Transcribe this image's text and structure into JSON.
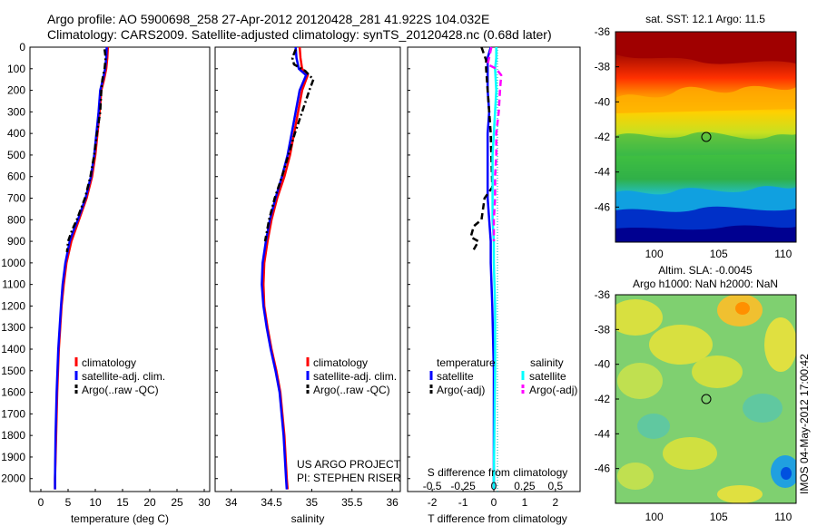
{
  "header": {
    "line1": "Argo profile: AO 5900698_258 27-Apr-2012 20120428_281 41.922S 104.032E",
    "line2": "Climatology: CARS2009. Satellite-adjusted climatology: synTS_20120428.nc (0.68d later)"
  },
  "depth_ticks": [
    "0",
    "100",
    "200",
    "300",
    "400",
    "500",
    "600",
    "700",
    "800",
    "900",
    "1000",
    "1100",
    "1200",
    "1300",
    "1400",
    "1500",
    "1600",
    "1700",
    "1800",
    "1900",
    "2000"
  ],
  "panels": {
    "temperature": {
      "xlabel": "temperature (deg C)",
      "xticks": [
        "0",
        "5",
        "10",
        "15",
        "20",
        "25",
        "30"
      ],
      "legend": [
        "climatology",
        "satellite-adj. clim.",
        "Argo(..raw -QC)"
      ]
    },
    "salinity": {
      "xlabel": "salinity",
      "xticks": [
        "34",
        "34.5",
        "35",
        "35.5",
        "36"
      ],
      "legend": [
        "climatology",
        "satellite-adj. clim.",
        "Argo(..raw -QC)"
      ],
      "credit1": "US ARGO PROJECT",
      "credit2": "PI: STEPHEN RISER"
    },
    "difference": {
      "xlabel": "T difference from climatology",
      "top_label": "S difference from climatology",
      "xticks_bottom": [
        "-2",
        "-1",
        "0",
        "1",
        "2"
      ],
      "xticks_top": [
        "-0.5",
        "-0.25",
        "0",
        "0.25",
        "0.5"
      ],
      "legend_temp_title": "temperature",
      "legend_sal_title": "salinity",
      "legend_temp": [
        "satellite",
        "Argo(-adj)"
      ],
      "legend_sal": [
        "satellite",
        "Argo(-adj)"
      ]
    }
  },
  "maps": {
    "sst": {
      "title": "sat. SST: 12.1 Argo: 11.5",
      "yticks": [
        "-36",
        "-38",
        "-40",
        "-42",
        "-44",
        "-46"
      ],
      "xticks": [
        "100",
        "105",
        "110"
      ]
    },
    "sla": {
      "title1": "Altim. SLA: -0.0045",
      "title2": "Argo h1000: NaN h2000: NaN",
      "yticks": [
        "-36",
        "-38",
        "-40",
        "-42",
        "-44",
        "-46"
      ],
      "xticks": [
        "100",
        "105",
        "110"
      ]
    },
    "stamp": "IMOS 04-May-2012 17:00:42"
  },
  "colors": {
    "climatology": "#ff0000",
    "satellite": "#0000ff",
    "argo": "#000000",
    "salinity_satellite": "#00ffff",
    "salinity_argo": "#ff00ff"
  },
  "chart_data": [
    {
      "type": "line",
      "xlabel": "temperature (deg C)",
      "ylabel": "",
      "xlim": [
        -2,
        31
      ],
      "ylim": [
        2060,
        0
      ],
      "y_depth": [
        0,
        50,
        100,
        150,
        200,
        300,
        400,
        500,
        600,
        700,
        800,
        850,
        900,
        1000,
        1100,
        1200,
        1400,
        1600,
        1800,
        2000,
        2050
      ],
      "series": [
        {
          "name": "climatology",
          "color": "#ff0000",
          "dash": "solid",
          "x": [
            12.3,
            12.2,
            12.0,
            11.6,
            11.1,
            10.8,
            10.4,
            10.0,
            9.4,
            8.4,
            7.0,
            6.3,
            5.6,
            4.7,
            4.2,
            3.8,
            3.3,
            3.0,
            2.8,
            2.6,
            2.6
          ]
        },
        {
          "name": "satellite-adj. clim.",
          "color": "#0000ff",
          "dash": "solid",
          "x": [
            12.1,
            12.0,
            11.8,
            11.4,
            10.9,
            10.6,
            10.2,
            9.8,
            9.2,
            8.2,
            6.8,
            6.0,
            5.3,
            4.5,
            4.0,
            3.7,
            3.2,
            2.9,
            2.7,
            2.6,
            2.6
          ]
        },
        {
          "name": "Argo(..raw -QC)",
          "color": "#000000",
          "dash": "dashdot",
          "y_depth": [
            10,
            50,
            100,
            150,
            200,
            300,
            400,
            500,
            600,
            700,
            800,
            850,
            900,
            950
          ],
          "x": [
            11.7,
            11.9,
            11.7,
            11.3,
            11.1,
            10.9,
            10.3,
            9.8,
            9.1,
            8.1,
            6.6,
            5.7,
            5.0,
            4.8
          ]
        }
      ]
    },
    {
      "type": "line",
      "xlabel": "salinity",
      "ylabel": "",
      "xlim": [
        33.8,
        36.1
      ],
      "ylim": [
        2060,
        0
      ],
      "y_depth": [
        0,
        50,
        100,
        130,
        200,
        300,
        400,
        500,
        600,
        700,
        800,
        900,
        1000,
        1100,
        1200,
        1300,
        1400,
        1500,
        1600,
        1800,
        2000,
        2050
      ],
      "series": [
        {
          "name": "climatology",
          "color": "#ff0000",
          "dash": "solid",
          "x": [
            34.85,
            34.86,
            34.88,
            34.95,
            34.88,
            34.83,
            34.78,
            34.73,
            34.66,
            34.57,
            34.5,
            34.45,
            34.41,
            34.4,
            34.41,
            34.45,
            34.5,
            34.56,
            34.61,
            34.66,
            34.69,
            34.7
          ]
        },
        {
          "name": "satellite-adj. clim.",
          "color": "#0000ff",
          "dash": "solid",
          "x": [
            34.8,
            34.81,
            34.84,
            34.93,
            34.85,
            34.8,
            34.75,
            34.7,
            34.63,
            34.55,
            34.48,
            34.43,
            34.39,
            34.38,
            34.4,
            34.44,
            34.49,
            34.55,
            34.6,
            34.65,
            34.68,
            34.69
          ]
        },
        {
          "name": "Argo(..raw -QC)",
          "color": "#000000",
          "dash": "dashdot",
          "y_depth": [
            10,
            50,
            80,
            110,
            150,
            200,
            300,
            400,
            500,
            600,
            700,
            800,
            900
          ],
          "x": [
            34.8,
            34.76,
            34.78,
            34.92,
            35.02,
            34.97,
            34.88,
            34.79,
            34.71,
            34.63,
            34.54,
            34.47,
            34.42
          ]
        }
      ]
    },
    {
      "type": "line",
      "xlabel": "T difference from climatology",
      "ylabel": "",
      "xlim": [
        -2.8,
        2.8
      ],
      "ylim": [
        2060,
        0
      ],
      "top_axis": {
        "label": "S difference from climatology",
        "xlim": [
          -0.7,
          0.7
        ]
      },
      "series": [
        {
          "name": "temperature satellite",
          "color": "#0000ff",
          "dash": "solid",
          "y_depth": [
            0,
            50,
            100,
            200,
            300,
            400,
            500,
            600,
            700,
            800,
            900,
            1000,
            1200,
            1500,
            2000,
            2050
          ],
          "x": [
            -0.1,
            -0.2,
            -0.2,
            -0.2,
            -0.15,
            -0.2,
            -0.2,
            -0.2,
            -0.2,
            -0.15,
            -0.1,
            -0.1,
            -0.05,
            0.0,
            0.0,
            0.0
          ]
        },
        {
          "name": "temperature Argo(-adj)",
          "color": "#000000",
          "dash": "dashed",
          "y_depth": [
            0,
            60,
            100,
            400,
            650,
            700,
            800,
            830,
            880,
            900,
            950
          ],
          "x": [
            -0.4,
            -0.25,
            -0.25,
            -0.1,
            -0.05,
            -0.3,
            -0.4,
            -0.65,
            -0.75,
            -0.5,
            -0.7
          ]
        },
        {
          "name": "salinity satellite",
          "color": "#00ffff",
          "dash": "solid",
          "y_depth": [
            0,
            50,
            100,
            200,
            300,
            400,
            500,
            600,
            700,
            800,
            900,
            1000,
            1200,
            1500,
            2000,
            2050
          ],
          "x": [
            0.02,
            0.02,
            0.01,
            0.02,
            0.01,
            0.0,
            -0.01,
            -0.01,
            -0.01,
            -0.01,
            0.0,
            0.0,
            0.01,
            0.01,
            0.0,
            0.0
          ]
        },
        {
          "name": "salinity Argo(-adj)",
          "color": "#ff00ff",
          "dash": "dashed",
          "y_depth": [
            0,
            80,
            100,
            130,
            200,
            300,
            400,
            500,
            600,
            700,
            800,
            900
          ],
          "x": [
            -0.02,
            -0.05,
            0.02,
            0.06,
            0.05,
            0.04,
            0.02,
            0.02,
            0.01,
            0.01,
            0.0,
            0.0
          ]
        }
      ]
    },
    {
      "type": "heatmap",
      "title": "sat. SST: 12.1 Argo: 11.5",
      "xlim": [
        97,
        111
      ],
      "ylim": [
        -48,
        -36
      ],
      "marker": [
        104.032,
        -41.922
      ]
    },
    {
      "type": "heatmap",
      "title": "Altim. SLA: -0.0045",
      "xlim": [
        97,
        111
      ],
      "ylim": [
        -48,
        -36
      ],
      "marker": [
        104.032,
        -41.922
      ]
    }
  ]
}
